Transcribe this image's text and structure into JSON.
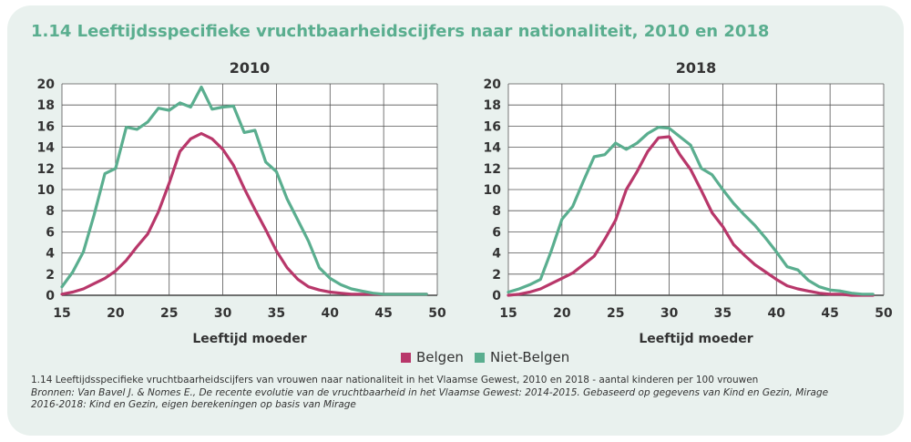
{
  "title": "1.14 Leeftijdsspecifieke vruchtbaarheidscijfers naar nationaliteit, 2010 en 2018",
  "legend": [
    {
      "label": "Belgen",
      "color": "#b8376a"
    },
    {
      "label": "Niet-Belgen",
      "color": "#5aae8f"
    }
  ],
  "footnote": {
    "caption": "1.14 Leeftijdsspecifieke vruchtbaarheidscijfers van vrouwen naar nationaliteit in het Vlaamse Gewest, 2010 en 2018 - aantal kinderen per 100 vrouwen",
    "source_line1": "Bronnen: Van Bavel J. & Nomes E., De recente evolutie van de vruchtbaarheid in het Vlaamse Gewest: 2014-2015. Gebaseerd op gegevens van Kind en Gezin, Mirage",
    "source_line2": "2016-2018: Kind en Gezin, eigen berekeningen op basis van Mirage"
  },
  "chart_data": [
    {
      "type": "line",
      "title": "2010",
      "xlabel": "Leeftijd moeder",
      "ylabel": "",
      "xlim": [
        15,
        50
      ],
      "ylim": [
        0,
        20
      ],
      "xticks": [
        15,
        20,
        25,
        30,
        35,
        40,
        45,
        50
      ],
      "yticks": [
        0,
        2,
        4,
        6,
        8,
        10,
        12,
        14,
        16,
        18,
        20
      ],
      "grid": true,
      "x": [
        15,
        16,
        17,
        18,
        19,
        20,
        21,
        22,
        23,
        24,
        25,
        26,
        27,
        28,
        29,
        30,
        31,
        32,
        33,
        34,
        35,
        36,
        37,
        38,
        39,
        40,
        41,
        42,
        43,
        44,
        45,
        46,
        47,
        48,
        49
      ],
      "series": [
        {
          "name": "Belgen",
          "color": "#b8376a",
          "values": [
            0.1,
            0.3,
            0.6,
            1.1,
            1.6,
            2.3,
            3.3,
            4.6,
            5.8,
            7.9,
            10.6,
            13.6,
            14.8,
            15.3,
            14.8,
            13.8,
            12.3,
            10.1,
            8.1,
            6.2,
            4.2,
            2.6,
            1.5,
            0.8,
            0.5,
            0.3,
            0.2,
            0.1,
            0.1,
            0.1,
            0.1,
            0.1,
            0.1,
            0.1,
            0.1
          ]
        },
        {
          "name": "Niet-Belgen",
          "color": "#5aae8f",
          "values": [
            0.8,
            2.2,
            4.1,
            7.6,
            11.5,
            12.0,
            15.9,
            15.7,
            16.4,
            17.7,
            17.5,
            18.2,
            17.8,
            19.7,
            17.6,
            17.8,
            17.9,
            15.4,
            15.6,
            12.6,
            11.7,
            9.1,
            7.1,
            5.1,
            2.6,
            1.6,
            1.0,
            0.6,
            0.4,
            0.2,
            0.1,
            0.1,
            0.1,
            0.1,
            0.1
          ]
        }
      ]
    },
    {
      "type": "line",
      "title": "2018",
      "xlabel": "Leeftijd moeder",
      "ylabel": "",
      "xlim": [
        15,
        50
      ],
      "ylim": [
        0,
        20
      ],
      "xticks": [
        15,
        20,
        25,
        30,
        35,
        40,
        45,
        50
      ],
      "yticks": [
        0,
        2,
        4,
        6,
        8,
        10,
        12,
        14,
        16,
        18,
        20
      ],
      "grid": true,
      "x": [
        15,
        16,
        17,
        18,
        19,
        20,
        21,
        22,
        23,
        24,
        25,
        26,
        27,
        28,
        29,
        30,
        31,
        32,
        33,
        34,
        35,
        36,
        37,
        38,
        39,
        40,
        41,
        42,
        43,
        44,
        45,
        46,
        47,
        48,
        49
      ],
      "series": [
        {
          "name": "Belgen",
          "color": "#b8376a",
          "values": [
            0.0,
            0.1,
            0.3,
            0.6,
            1.1,
            1.6,
            2.1,
            2.9,
            3.7,
            5.3,
            7.1,
            10.0,
            11.7,
            13.6,
            14.9,
            15.0,
            13.3,
            11.9,
            9.9,
            7.8,
            6.5,
            4.8,
            3.8,
            2.9,
            2.2,
            1.5,
            0.9,
            0.6,
            0.4,
            0.2,
            0.1,
            0.1,
            0.0,
            0.0,
            0.0
          ]
        },
        {
          "name": "Niet-Belgen",
          "color": "#5aae8f",
          "values": [
            0.3,
            0.6,
            1.0,
            1.5,
            4.2,
            7.2,
            8.4,
            10.8,
            13.1,
            13.3,
            14.4,
            13.8,
            14.4,
            15.3,
            15.9,
            15.8,
            15.0,
            14.2,
            12.0,
            11.4,
            10.0,
            8.7,
            7.6,
            6.6,
            5.4,
            4.1,
            2.7,
            2.4,
            1.4,
            0.8,
            0.5,
            0.4,
            0.2,
            0.1,
            0.1
          ]
        }
      ]
    }
  ]
}
